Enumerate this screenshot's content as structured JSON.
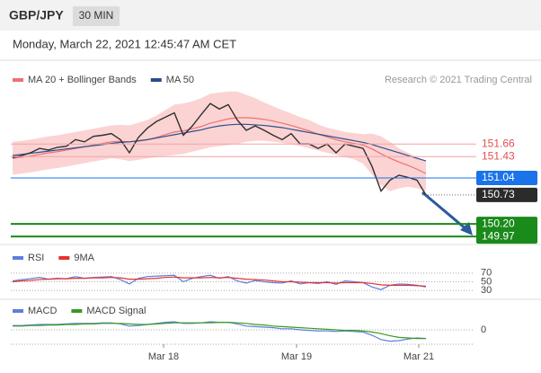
{
  "header": {
    "pair": "GBP/JPY",
    "timeframe": "30 MIN",
    "date": "Monday, March 22, 2021 12:45:47 AM CET",
    "credit": "Research © 2021 Trading Central"
  },
  "chart_data": [
    {
      "type": "line",
      "ylim": [
        149.89,
        153.06
      ],
      "series": [
        {
          "name": "MA 20 + Bollinger Bands",
          "color": "#f07070",
          "band_color": "#fbd3d3",
          "values": [
            151.4,
            151.42,
            151.44,
            151.47,
            151.5,
            151.52,
            151.55,
            151.58,
            151.61,
            151.64,
            151.67,
            151.7,
            151.71,
            151.7,
            151.71,
            151.74,
            151.78,
            151.83,
            151.88,
            151.9,
            151.94,
            151.98,
            152.04,
            152.08,
            152.12,
            152.14,
            152.14,
            152.13,
            152.11,
            152.08,
            152.04,
            152.0,
            151.95,
            151.9,
            151.84,
            151.79,
            151.74,
            151.7,
            151.67,
            151.64,
            151.57,
            151.48,
            151.4,
            151.33,
            151.27,
            151.2,
            151.12
          ],
          "upper": [
            151.7,
            151.72,
            151.74,
            151.77,
            151.8,
            151.82,
            151.85,
            151.88,
            151.91,
            151.94,
            151.97,
            152.0,
            152.01,
            152.0,
            152.05,
            152.1,
            152.18,
            152.28,
            152.38,
            152.4,
            152.44,
            152.5,
            152.58,
            152.6,
            152.62,
            152.62,
            152.56,
            152.5,
            152.42,
            152.35,
            152.28,
            152.22,
            152.15,
            152.1,
            152.02,
            151.96,
            151.92,
            151.88,
            151.86,
            151.84,
            151.85,
            151.8,
            151.7,
            151.58,
            151.5,
            151.42,
            151.35
          ],
          "lower": [
            151.1,
            151.12,
            151.14,
            151.17,
            151.2,
            151.22,
            151.25,
            151.28,
            151.31,
            151.34,
            151.37,
            151.4,
            151.38,
            151.35,
            151.37,
            151.4,
            151.42,
            151.44,
            151.46,
            151.48,
            151.52,
            151.56,
            151.6,
            151.62,
            151.64,
            151.66,
            151.7,
            151.72,
            151.72,
            151.7,
            151.68,
            151.66,
            151.62,
            151.58,
            151.54,
            151.5,
            151.46,
            151.42,
            151.38,
            151.3,
            151.1,
            150.9,
            150.8,
            150.85,
            150.88,
            150.85,
            150.8
          ]
        },
        {
          "name": "MA 50",
          "color": "#2a4f8f",
          "values": [
            151.45,
            151.47,
            151.49,
            151.51,
            151.53,
            151.55,
            151.57,
            151.59,
            151.61,
            151.63,
            151.65,
            151.67,
            151.69,
            151.7,
            151.72,
            151.74,
            151.77,
            151.8,
            151.83,
            151.86,
            151.89,
            151.92,
            151.96,
            151.99,
            152.01,
            152.02,
            152.02,
            152.01,
            152.0,
            151.98,
            151.96,
            151.93,
            151.9,
            151.87,
            151.84,
            151.81,
            151.78,
            151.75,
            151.72,
            151.69,
            151.65,
            151.6,
            151.55,
            151.5,
            151.45,
            151.4,
            151.35
          ]
        },
        {
          "color": "#2f2f2f",
          "values": [
            151.41,
            151.45,
            151.5,
            151.58,
            151.55,
            151.6,
            151.62,
            151.74,
            151.7,
            151.8,
            151.82,
            151.85,
            151.74,
            151.5,
            151.78,
            151.95,
            152.07,
            152.15,
            152.23,
            151.82,
            151.99,
            152.2,
            152.4,
            152.3,
            152.38,
            152.1,
            151.91,
            151.99,
            151.91,
            151.82,
            151.74,
            151.85,
            151.66,
            151.66,
            151.58,
            151.66,
            151.5,
            151.66,
            151.62,
            151.58,
            151.25,
            150.8,
            151.0,
            151.09,
            151.05,
            151.0,
            150.73
          ]
        }
      ],
      "levels": [
        {
          "value": 151.66,
          "color": "#f4a3a3",
          "box": false
        },
        {
          "value": 151.43,
          "color": "#f4a3a3",
          "box": false
        },
        {
          "value": 151.04,
          "color": "#1a73e8",
          "box": true
        },
        {
          "value": 150.73,
          "color": "#2b2b2b",
          "box": true
        },
        {
          "value": 150.2,
          "label": "150.20",
          "color": "#1a8a1a",
          "box": true
        },
        {
          "value": 149.97,
          "color": "#1a8a1a",
          "box": true
        }
      ]
    },
    {
      "type": "line",
      "ylim": [
        20,
        80
      ],
      "yticks": [
        70,
        50,
        30
      ],
      "series": [
        {
          "name": "RSI",
          "color": "#5b7fde",
          "values": [
            52,
            55,
            57,
            60,
            56,
            58,
            57,
            62,
            58,
            60,
            61,
            62,
            55,
            45,
            58,
            62,
            63,
            64,
            65,
            50,
            58,
            62,
            65,
            58,
            62,
            52,
            47,
            53,
            50,
            48,
            47,
            52,
            45,
            48,
            46,
            50,
            44,
            52,
            50,
            48,
            38,
            32,
            42,
            45,
            44,
            42,
            38
          ]
        },
        {
          "name": "9MA",
          "color": "#e83030",
          "values": [
            50,
            52,
            53,
            55,
            56,
            57,
            57,
            58,
            58,
            59,
            59,
            60,
            59,
            56,
            56,
            57,
            58,
            60,
            61,
            59,
            59,
            59,
            60,
            59,
            60,
            58,
            56,
            55,
            54,
            52,
            50,
            50,
            49,
            48,
            48,
            48,
            47,
            48,
            48,
            48,
            46,
            43,
            42,
            42,
            42,
            41,
            40
          ]
        }
      ]
    },
    {
      "type": "line",
      "ylim": [
        -0.3,
        0.3
      ],
      "yticks": [
        0
      ],
      "xticks": [
        {
          "value": 16.8,
          "label": "Mar 18"
        },
        {
          "value": 31.6,
          "label": "Mar 19"
        },
        {
          "value": 45.2,
          "label": "Mar 21"
        }
      ],
      "series": [
        {
          "name": "MACD",
          "color": "#5b7fde",
          "values": [
            0.08,
            0.08,
            0.09,
            0.1,
            0.1,
            0.1,
            0.11,
            0.12,
            0.12,
            0.12,
            0.13,
            0.13,
            0.11,
            0.07,
            0.08,
            0.1,
            0.12,
            0.14,
            0.15,
            0.12,
            0.12,
            0.13,
            0.15,
            0.14,
            0.14,
            0.11,
            0.07,
            0.06,
            0.05,
            0.04,
            0.02,
            0.02,
            0.0,
            -0.01,
            -0.02,
            -0.02,
            -0.03,
            -0.02,
            -0.03,
            -0.04,
            -0.1,
            -0.18,
            -0.21,
            -0.2,
            -0.17,
            -0.15,
            -0.16
          ]
        },
        {
          "name": "MACD Signal",
          "color": "#3a9a1a",
          "values": [
            0.07,
            0.07,
            0.08,
            0.08,
            0.09,
            0.09,
            0.1,
            0.1,
            0.11,
            0.11,
            0.12,
            0.12,
            0.12,
            0.11,
            0.1,
            0.1,
            0.11,
            0.12,
            0.13,
            0.13,
            0.13,
            0.13,
            0.13,
            0.14,
            0.14,
            0.13,
            0.12,
            0.1,
            0.09,
            0.07,
            0.06,
            0.05,
            0.04,
            0.03,
            0.02,
            0.01,
            0.0,
            -0.01,
            -0.01,
            -0.02,
            -0.04,
            -0.07,
            -0.11,
            -0.14,
            -0.15,
            -0.16,
            -0.16
          ]
        }
      ]
    }
  ]
}
